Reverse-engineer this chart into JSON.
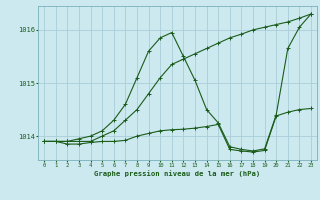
{
  "background_color": "#cce9f0",
  "grid_color": "#aacdd8",
  "line_color": "#1a5c1a",
  "text_color": "#1a5c1a",
  "xlabel": "Graphe pression niveau de la mer (hPa)",
  "xlim": [
    -0.5,
    23.5
  ],
  "ylim": [
    1013.55,
    1016.45
  ],
  "yticks": [
    1014,
    1015,
    1016
  ],
  "xticks": [
    0,
    1,
    2,
    3,
    4,
    5,
    6,
    7,
    8,
    9,
    10,
    11,
    12,
    13,
    14,
    15,
    16,
    17,
    18,
    19,
    20,
    21,
    22,
    23
  ],
  "series1": {
    "x": [
      0,
      1,
      2,
      3,
      4,
      5,
      6,
      7,
      8,
      9,
      10,
      11,
      12,
      13,
      14,
      15,
      16,
      17,
      18,
      19,
      20,
      21,
      22,
      23
    ],
    "y": [
      1013.9,
      1013.9,
      1013.9,
      1013.9,
      1013.9,
      1014.0,
      1014.1,
      1014.3,
      1014.5,
      1014.8,
      1015.1,
      1015.35,
      1015.45,
      1015.55,
      1015.65,
      1015.75,
      1015.85,
      1015.92,
      1016.0,
      1016.05,
      1016.1,
      1016.15,
      1016.22,
      1016.3
    ]
  },
  "series2": {
    "x": [
      0,
      1,
      2,
      3,
      4,
      5,
      6,
      7,
      8,
      9,
      10,
      11,
      12,
      13,
      14,
      15,
      16,
      17,
      18,
      19,
      20,
      21,
      22,
      23
    ],
    "y": [
      1013.9,
      1013.9,
      1013.9,
      1013.95,
      1014.0,
      1014.1,
      1014.3,
      1014.6,
      1015.1,
      1015.6,
      1015.85,
      1015.95,
      1015.5,
      1015.05,
      1014.5,
      1014.25,
      1013.8,
      1013.75,
      1013.72,
      1013.76,
      1014.4,
      1015.65,
      1016.05,
      1016.3
    ]
  },
  "series3": {
    "x": [
      0,
      1,
      2,
      3,
      4,
      5,
      6,
      7,
      8,
      9,
      10,
      11,
      12,
      13,
      14,
      15,
      16,
      17,
      18,
      19,
      20,
      21,
      22,
      23
    ],
    "y": [
      1013.9,
      1013.9,
      1013.85,
      1013.85,
      1013.88,
      1013.9,
      1013.9,
      1013.92,
      1014.0,
      1014.05,
      1014.1,
      1014.12,
      1014.13,
      1014.15,
      1014.18,
      1014.22,
      1013.75,
      1013.72,
      1013.7,
      1013.73,
      1014.38,
      1014.45,
      1014.5,
      1014.52
    ]
  }
}
